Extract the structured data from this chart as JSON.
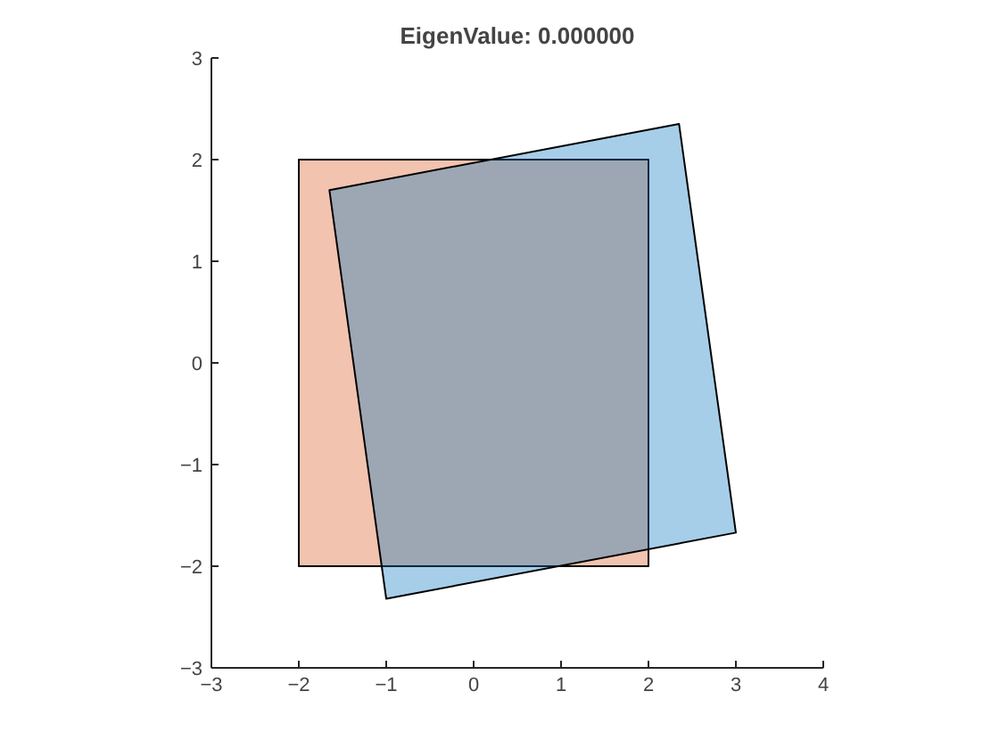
{
  "chart_data": {
    "type": "area",
    "title": "EigenValue: 0.000000",
    "series": [
      {
        "x": [
          -2,
          2,
          2,
          -2,
          -2
        ],
        "values": [
          -2,
          -2,
          2,
          2,
          -2
        ],
        "color": "#d95319"
      },
      {
        "x": [
          -1.65,
          2.35,
          3.0,
          -1.0,
          -1.65
        ],
        "values": [
          1.7,
          2.35,
          -1.67,
          -2.32,
          1.7
        ],
        "color": "#0072bd"
      }
    ],
    "xlim": [
      -3,
      4
    ],
    "ylim": [
      -3,
      3
    ],
    "xticks": [
      -3,
      -2,
      -1,
      0,
      1,
      2,
      3,
      4
    ],
    "yticks": [
      -3,
      -2,
      -1,
      0,
      1,
      2,
      3
    ],
    "grid": false
  }
}
